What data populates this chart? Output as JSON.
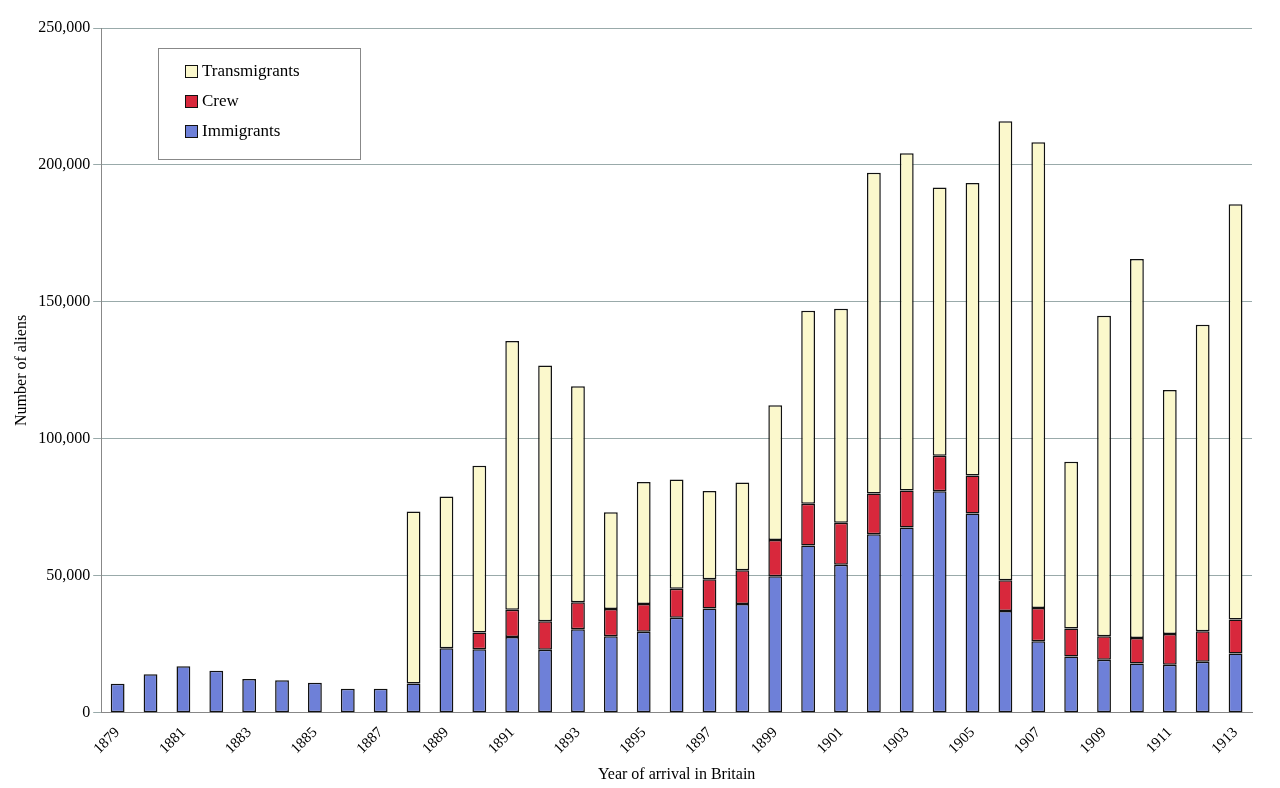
{
  "chart_data": {
    "type": "bar",
    "stacked": true,
    "xlabel": "Year of arrival in Britain",
    "ylabel": "Number of aliens",
    "categories": [
      "1879",
      null,
      "1881",
      null,
      "1883",
      null,
      "1885",
      null,
      "1887",
      null,
      "1889",
      null,
      "1891",
      null,
      "1893",
      null,
      "1895",
      null,
      "1897",
      null,
      "1899",
      null,
      "1901",
      null,
      "1903",
      null,
      "1905",
      null,
      "1907",
      null,
      "1909",
      null,
      "1911",
      null,
      "1913"
    ],
    "series": [
      {
        "name": "Immigrants",
        "color": "#6e80d8",
        "values": [
          10600,
          14100,
          17000,
          15400,
          12400,
          11900,
          11000,
          8800,
          8800,
          10700,
          23600,
          23200,
          27700,
          23000,
          30500,
          28000,
          29600,
          34700,
          38100,
          39700,
          49900,
          61100,
          54100,
          65200,
          67700,
          80900,
          72800,
          37200,
          26100,
          20600,
          19400,
          18000,
          17600,
          18700,
          21700
        ]
      },
      {
        "name": "Crew",
        "color": "#d8283c",
        "values": [
          0,
          0,
          0,
          0,
          0,
          0,
          0,
          0,
          0,
          0,
          0,
          6100,
          9900,
          10400,
          9900,
          9900,
          10100,
          10600,
          10700,
          12400,
          13200,
          15200,
          15300,
          14900,
          13500,
          13000,
          13800,
          11200,
          12200,
          10200,
          8600,
          9300,
          11200,
          11100,
          12400
        ]
      },
      {
        "name": "Transmigrants",
        "color": "#fbf8cc",
        "values": [
          0,
          0,
          0,
          0,
          0,
          0,
          0,
          0,
          0,
          62800,
          55400,
          60900,
          98100,
          93400,
          78800,
          35300,
          44600,
          39900,
          32200,
          32000,
          49200,
          70500,
          78100,
          117100,
          123100,
          97900,
          106800,
          167600,
          170000,
          60900,
          117000,
          138400,
          89100,
          111900,
          151600
        ]
      }
    ],
    "ylim": [
      0,
      250000
    ],
    "yticks": [
      0,
      {
        "value": 50000,
        "label": "50,000"
      },
      {
        "value": 100000,
        "label": "100,000"
      },
      {
        "value": 150000,
        "label": "150,000"
      },
      {
        "value": 200000,
        "label": "200,000"
      },
      {
        "value": 250000,
        "label": "250,000"
      }
    ],
    "grid": "y",
    "legend": "top left"
  }
}
